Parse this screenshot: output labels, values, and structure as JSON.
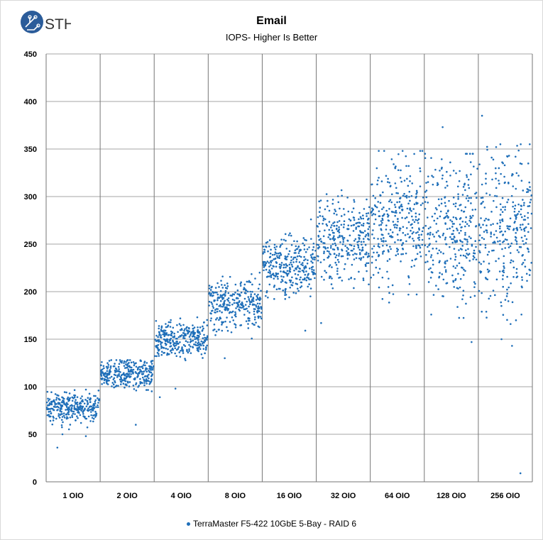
{
  "logo_text": "STH",
  "chart_data": {
    "type": "scatter",
    "title": "Email",
    "subtitle": "IOPS- Higher Is Better",
    "xlabel": "",
    "ylabel": "",
    "ylim": [
      0,
      450
    ],
    "yticks": [
      0,
      50,
      100,
      150,
      200,
      250,
      300,
      350,
      400,
      450
    ],
    "grid": true,
    "legend_position": "bottom",
    "color": "#1f6fb9",
    "categories": [
      "1 OIO",
      "2 OIO",
      "4 OIO",
      "8 OIO",
      "16 OIO",
      "32 OIO",
      "64 OIO",
      "128 OIO",
      "256 OIO"
    ],
    "series": [
      {
        "name": "TerraMaster F5-422 10GbE 5-Bay - RAID 6",
        "distribution": [
          {
            "category": "1 OIO",
            "mean": 78,
            "spread": 8,
            "min": 55,
            "max": 97,
            "count": 300,
            "outliers": [
              36,
              48,
              50
            ]
          },
          {
            "category": "2 OIO",
            "mean": 113,
            "spread": 8,
            "min": 88,
            "max": 128,
            "count": 300,
            "outliers": [
              60
            ]
          },
          {
            "category": "4 OIO",
            "mean": 150,
            "spread": 9,
            "min": 120,
            "max": 173,
            "count": 300,
            "outliers": [
              89,
              98
            ]
          },
          {
            "category": "8 OIO",
            "mean": 187,
            "spread": 14,
            "min": 140,
            "max": 220,
            "count": 300,
            "outliers": [
              130
            ]
          },
          {
            "category": "16 OIO",
            "mean": 228,
            "spread": 16,
            "min": 180,
            "max": 270,
            "count": 300,
            "outliers": [
              159,
              276
            ]
          },
          {
            "category": "32 OIO",
            "mean": 255,
            "spread": 24,
            "min": 190,
            "max": 320,
            "count": 300,
            "outliers": [
              167
            ]
          },
          {
            "category": "64 OIO",
            "mean": 275,
            "spread": 35,
            "min": 172,
            "max": 348,
            "count": 300,
            "outliers": []
          },
          {
            "category": "128 OIO",
            "mean": 268,
            "spread": 40,
            "min": 160,
            "max": 345,
            "count": 300,
            "outliers": [
              147,
              373
            ]
          },
          {
            "category": "256 OIO",
            "mean": 265,
            "spread": 40,
            "min": 150,
            "max": 355,
            "count": 300,
            "outliers": [
              9,
              143,
              385
            ]
          }
        ]
      }
    ]
  }
}
